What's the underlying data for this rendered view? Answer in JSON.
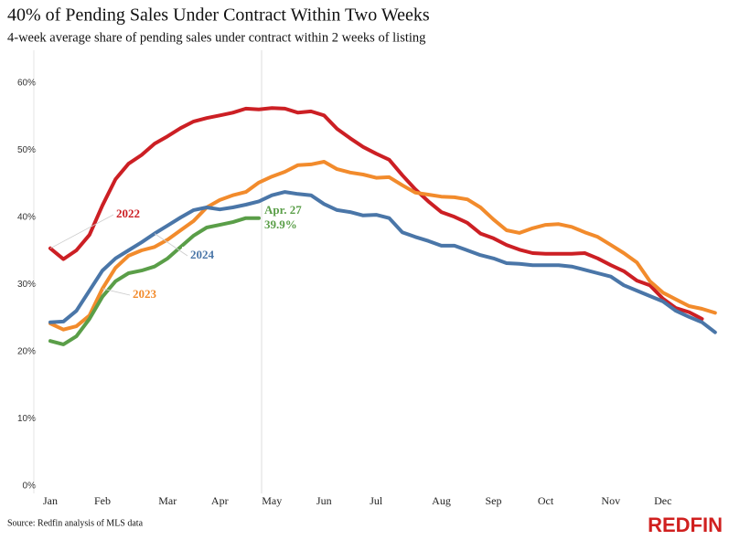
{
  "chart_data": {
    "type": "line",
    "title": "40% of Pending Sales Under Contract Within Two Weeks",
    "subtitle": "4-week average share of pending sales under contract within 2 weeks of listing",
    "source": "Source: Redfin analysis of MLS data",
    "brand": "REDFIN",
    "categories": [
      "Jan",
      null,
      null,
      null,
      "Feb",
      null,
      null,
      null,
      null,
      "Mar",
      null,
      null,
      null,
      "Apr",
      null,
      null,
      null,
      "May",
      null,
      null,
      null,
      "Jun",
      null,
      null,
      null,
      "Jul",
      null,
      null,
      null,
      null,
      "Aug",
      null,
      null,
      null,
      "Sep",
      null,
      null,
      null,
      "Oct",
      null,
      null,
      null,
      null,
      "Nov",
      null,
      null,
      null,
      "Dec",
      null,
      null,
      null,
      null
    ],
    "ylim": [
      0,
      60
    ],
    "yticks": [
      {
        "value": 0,
        "label": "0%"
      },
      {
        "value": 10,
        "label": "10%"
      },
      {
        "value": 20,
        "label": "20%"
      },
      {
        "value": 30,
        "label": "30%"
      },
      {
        "value": 40,
        "label": "40%"
      },
      {
        "value": 50,
        "label": "50%"
      },
      {
        "value": 60,
        "label": "60%"
      }
    ],
    "grid": false,
    "annotations": [
      {
        "text": "Apr. 27"
      }
    ],
    "series": [
      {
        "name": "2022",
        "color": "#cc1f24",
        "values": [
          35.4,
          33.8,
          35.1,
          37.4,
          41.8,
          45.7,
          48.0,
          49.3,
          51.0,
          52.1,
          53.3,
          54.3,
          54.8,
          55.2,
          55.6,
          56.2,
          56.1,
          56.3,
          56.2,
          55.6,
          55.8,
          55.2,
          53.2,
          51.8,
          50.5,
          49.5,
          48.6,
          46.3,
          44.2,
          42.4,
          40.8,
          40.1,
          39.2,
          37.6,
          36.9,
          35.9,
          35.2,
          34.7,
          34.6,
          34.6,
          34.6,
          34.7,
          33.9,
          32.9,
          32.0,
          30.6,
          29.9,
          27.9,
          26.5,
          25.9,
          24.9,
          null
        ]
      },
      {
        "name": "2023",
        "color": "#f28b2c",
        "values": [
          24.2,
          23.3,
          23.8,
          25.4,
          29.4,
          32.5,
          34.3,
          35.1,
          35.6,
          36.7,
          38.1,
          39.5,
          41.5,
          42.6,
          43.3,
          43.8,
          45.2,
          46.1,
          46.8,
          47.8,
          47.9,
          48.3,
          47.2,
          46.7,
          46.4,
          45.9,
          46.0,
          44.8,
          43.7,
          43.4,
          43.1,
          43.0,
          42.7,
          41.5,
          39.7,
          38.1,
          37.7,
          38.4,
          38.9,
          39.0,
          38.6,
          37.8,
          37.1,
          35.9,
          34.7,
          33.3,
          30.5,
          28.8,
          27.8,
          26.8,
          26.4,
          25.8
        ]
      },
      {
        "name": "2024",
        "color": "#4a76a8",
        "values": [
          24.4,
          24.5,
          26.1,
          29.1,
          32.1,
          33.9,
          35.1,
          36.3,
          37.6,
          38.8,
          40.0,
          41.1,
          41.5,
          41.2,
          41.5,
          41.9,
          42.4,
          43.3,
          43.8,
          43.5,
          43.3,
          42.0,
          41.1,
          40.8,
          40.3,
          40.4,
          39.9,
          37.8,
          37.1,
          36.5,
          35.8,
          35.8,
          35.1,
          34.4,
          33.9,
          33.2,
          33.1,
          32.9,
          32.9,
          32.9,
          32.7,
          32.2,
          31.7,
          31.2,
          29.9,
          29.1,
          28.3,
          27.5,
          26.1,
          25.2,
          24.4,
          22.9
        ]
      },
      {
        "color": "#5a9e48",
        "values": [
          21.6,
          21.1,
          22.3,
          24.9,
          28.2,
          30.5,
          31.7,
          32.1,
          32.7,
          33.9,
          35.6,
          37.3,
          38.5,
          38.9,
          39.3,
          39.9,
          39.9,
          null,
          null,
          null,
          null,
          null,
          null,
          null,
          null,
          null,
          null,
          null,
          null,
          null,
          null,
          null,
          null,
          null,
          null,
          null,
          null,
          null,
          null,
          null,
          null,
          null,
          null,
          null,
          null,
          null,
          null,
          null,
          null,
          null,
          null,
          null
        ],
        "value_labels": [
          null,
          null,
          null,
          null,
          null,
          null,
          null,
          null,
          null,
          null,
          null,
          null,
          null,
          null,
          null,
          null,
          "39.9%",
          null,
          null,
          null,
          null,
          null,
          null,
          null,
          null,
          null,
          null,
          null,
          null,
          null,
          null,
          null,
          null,
          null,
          null,
          null,
          null,
          null,
          null,
          null,
          null,
          null,
          null,
          null,
          null,
          null,
          null,
          null,
          null,
          null,
          null,
          null
        ]
      }
    ]
  }
}
